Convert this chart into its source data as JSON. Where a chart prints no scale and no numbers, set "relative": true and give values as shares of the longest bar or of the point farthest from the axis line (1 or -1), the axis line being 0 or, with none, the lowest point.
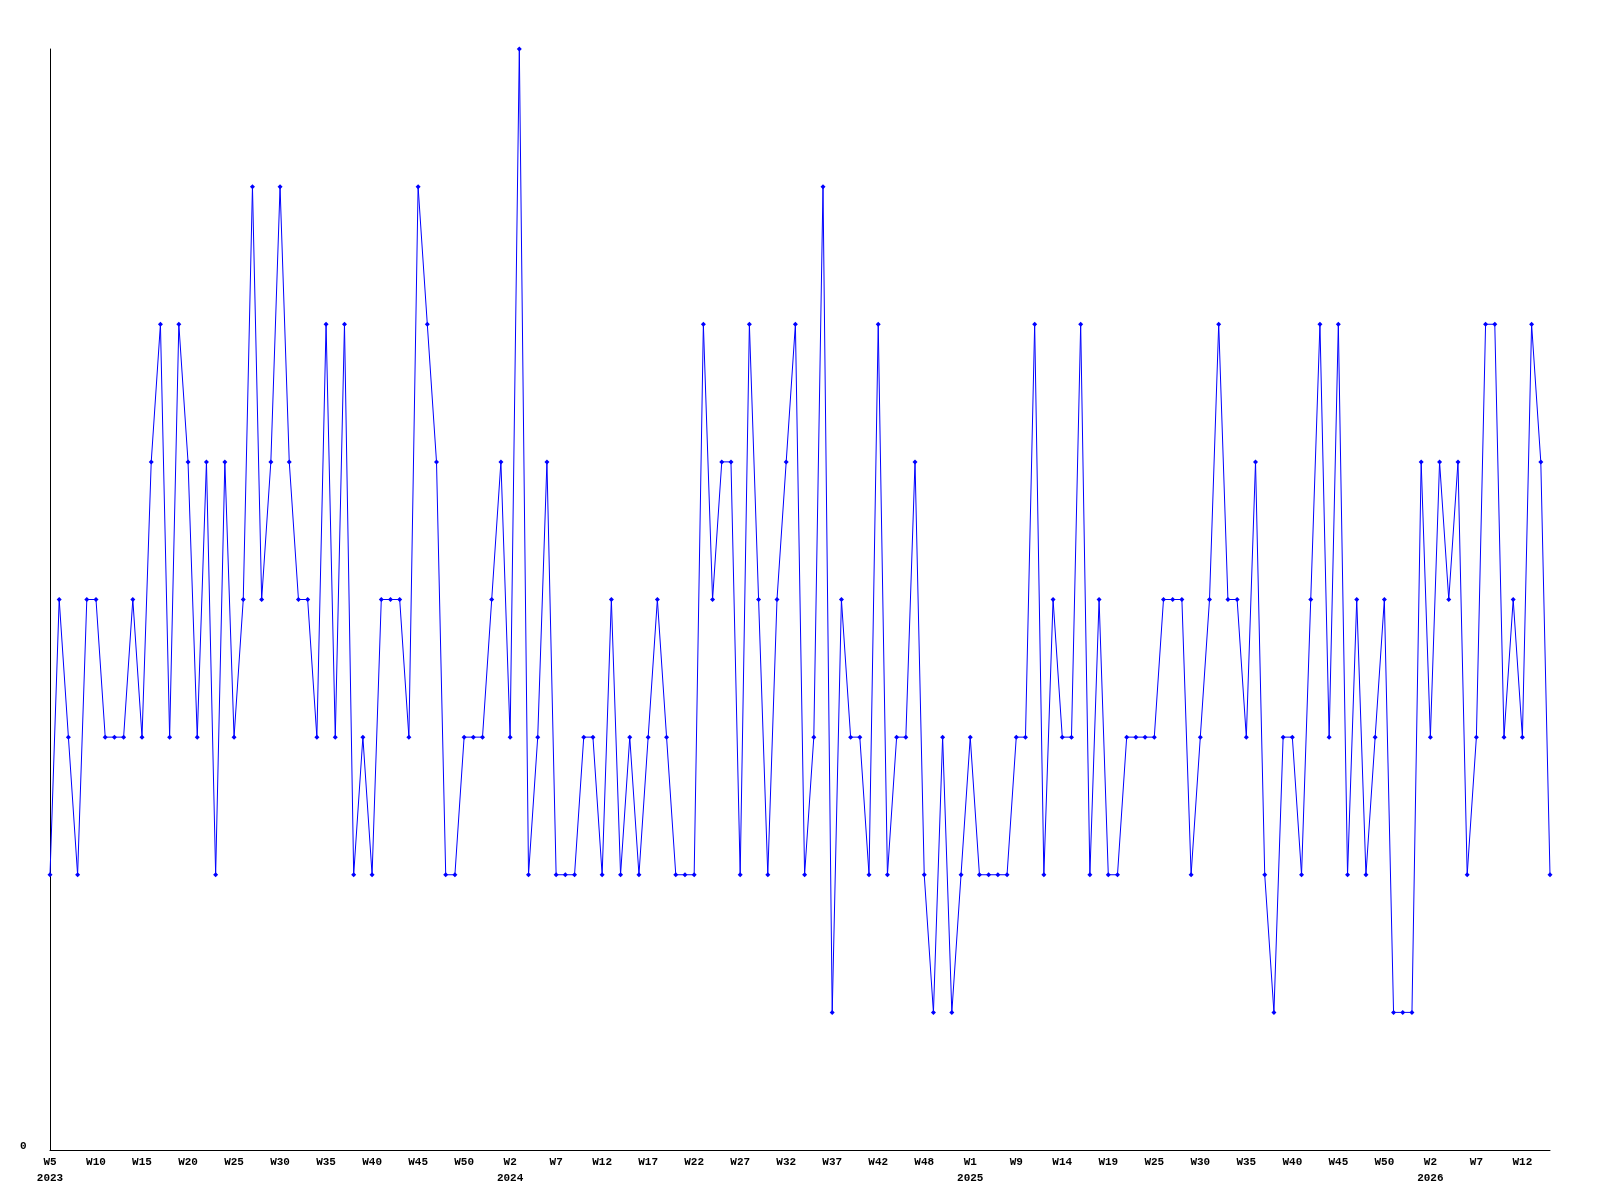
{
  "chart_data": {
    "type": "line",
    "relative": true,
    "marker": "diamond",
    "line_style": "solid",
    "annotations": [
      "0"
    ],
    "categories": [
      "W5\n2023",
      null,
      null,
      null,
      null,
      "W10",
      null,
      null,
      null,
      null,
      "W15",
      null,
      null,
      null,
      null,
      "W20",
      null,
      null,
      null,
      null,
      "W25",
      null,
      null,
      null,
      null,
      "W30",
      null,
      null,
      null,
      null,
      "W35",
      null,
      null,
      null,
      null,
      "W40",
      null,
      null,
      null,
      null,
      "W45",
      null,
      null,
      null,
      null,
      "W50",
      null,
      null,
      null,
      null,
      "W2\n2024",
      null,
      null,
      null,
      null,
      "W7",
      null,
      null,
      null,
      null,
      "W12",
      null,
      null,
      null,
      null,
      "W17",
      null,
      null,
      null,
      null,
      "W22",
      null,
      null,
      null,
      null,
      "W27",
      null,
      null,
      null,
      null,
      "W32",
      null,
      null,
      null,
      null,
      "W37",
      null,
      null,
      null,
      null,
      "W42",
      null,
      null,
      null,
      null,
      "W48",
      null,
      null,
      null,
      null,
      "W1\n2025",
      null,
      null,
      null,
      null,
      "W9",
      null,
      null,
      null,
      null,
      "W14",
      null,
      null,
      null,
      null,
      "W19",
      null,
      null,
      null,
      null,
      "W25",
      null,
      null,
      null,
      null,
      "W30",
      null,
      null,
      null,
      null,
      "W35",
      null,
      null,
      null,
      null,
      "W40",
      null,
      null,
      null,
      null,
      "W45",
      null,
      null,
      null,
      null,
      "W50",
      null,
      null,
      null,
      null,
      "W2\n2026",
      null,
      null,
      null,
      null,
      "W7",
      null,
      null,
      null,
      null,
      "W12",
      null,
      null,
      null
    ],
    "series": [
      {
        "color": "#0000ff",
        "values": [
          0.25,
          0.5,
          0.375,
          0.25,
          0.5,
          0.5,
          0.375,
          0.375,
          0.375,
          0.5,
          0.375,
          0.625,
          0.75,
          0.375,
          0.75,
          0.625,
          0.375,
          0.625,
          0.25,
          0.625,
          0.375,
          0.5,
          0.875,
          0.5,
          0.625,
          0.875,
          0.625,
          0.5,
          0.5,
          0.375,
          0.75,
          0.375,
          0.75,
          0.25,
          0.375,
          0.25,
          0.5,
          0.5,
          0.5,
          0.375,
          0.875,
          0.75,
          0.625,
          0.25,
          0.25,
          0.375,
          0.375,
          0.375,
          0.5,
          0.625,
          0.375,
          1,
          0.25,
          0.375,
          0.625,
          0.25,
          0.25,
          0.25,
          0.375,
          0.375,
          0.25,
          0.5,
          0.25,
          0.375,
          0.25,
          0.375,
          0.5,
          0.375,
          0.25,
          0.25,
          0.25,
          0.75,
          0.5,
          0.625,
          0.625,
          0.25,
          0.75,
          0.5,
          0.25,
          0.5,
          0.625,
          0.75,
          0.25,
          0.375,
          0.875,
          0.125,
          0.5,
          0.375,
          0.375,
          0.25,
          0.75,
          0.25,
          0.375,
          0.375,
          0.625,
          0.25,
          0.125,
          0.375,
          0.125,
          0.25,
          0.375,
          0.25,
          0.25,
          0.25,
          0.25,
          0.375,
          0.375,
          0.75,
          0.25,
          0.5,
          0.375,
          0.375,
          0.75,
          0.25,
          0.5,
          0.25,
          0.25,
          0.375,
          0.375,
          0.375,
          0.375,
          0.5,
          0.5,
          0.5,
          0.25,
          0.375,
          0.5,
          0.75,
          0.5,
          0.5,
          0.375,
          0.625,
          0.25,
          0.125,
          0.375,
          0.375,
          0.25,
          0.5,
          0.75,
          0.375,
          0.75,
          0.25,
          0.5,
          0.25,
          0.375,
          0.5,
          0.125,
          0.125,
          0.125,
          0.625,
          0.375,
          0.625,
          0.5,
          0.625,
          0.25,
          0.375,
          0.75,
          0.75,
          0.375,
          0.5,
          0.375,
          0.75,
          0.625,
          0.25
        ]
      }
    ]
  }
}
